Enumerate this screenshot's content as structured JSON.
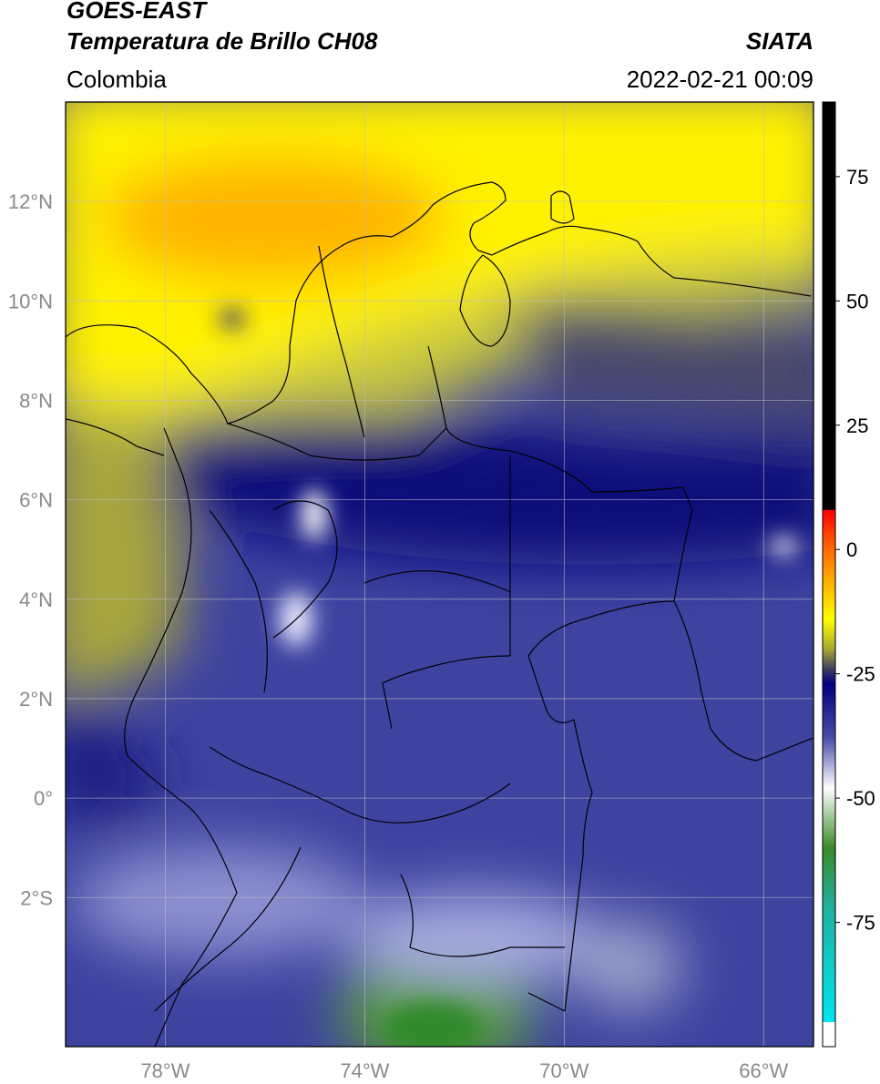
{
  "header": {
    "satellite": "GOES-EAST",
    "product": "Temperatura de Brillo CH08",
    "source": "SIATA",
    "region": "Colombia",
    "datetime": "2022-02-21 00:09"
  },
  "map": {
    "lon_range": [
      -80,
      -65
    ],
    "lat_range": [
      -5,
      14
    ],
    "lon_ticks": [
      {
        "value": -78,
        "label": "78°W"
      },
      {
        "value": -74,
        "label": "74°W"
      },
      {
        "value": -70,
        "label": "70°W"
      },
      {
        "value": -66,
        "label": "66°W"
      }
    ],
    "lat_ticks": [
      {
        "value": 12,
        "label": "12°N"
      },
      {
        "value": 10,
        "label": "10°N"
      },
      {
        "value": 8,
        "label": "8°N"
      },
      {
        "value": 6,
        "label": "6°N"
      },
      {
        "value": 4,
        "label": "4°N"
      },
      {
        "value": 2,
        "label": "2°N"
      },
      {
        "value": 0,
        "label": "0°"
      },
      {
        "value": -2,
        "label": "2°S"
      }
    ],
    "grid": true,
    "tick_label_color": "#8a8a8a"
  },
  "colorbar": {
    "range": [
      -100,
      90
    ],
    "tick_values": [
      75,
      50,
      25,
      0,
      -25,
      -50,
      -75
    ],
    "tick_labels": [
      "75",
      "50",
      "25",
      "0",
      "-25",
      "-50",
      "-75"
    ],
    "stops": [
      {
        "v": 90,
        "c": "#000000"
      },
      {
        "v": 8,
        "c": "#000000"
      },
      {
        "v": 7.9,
        "c": "#ff0000"
      },
      {
        "v": 0,
        "c": "#ff6a00"
      },
      {
        "v": -8,
        "c": "#ffc000"
      },
      {
        "v": -14,
        "c": "#ffff00"
      },
      {
        "v": -20,
        "c": "#a8a830"
      },
      {
        "v": -24,
        "c": "#404060"
      },
      {
        "v": -27,
        "c": "#000080"
      },
      {
        "v": -38,
        "c": "#4a4fa8"
      },
      {
        "v": -48,
        "c": "#ffffff"
      },
      {
        "v": -60,
        "c": "#3a8a2a"
      },
      {
        "v": -72,
        "c": "#20b0a0"
      },
      {
        "v": -95,
        "c": "#00e5ee"
      },
      {
        "v": -95.1,
        "c": "#ffffff"
      },
      {
        "v": -100,
        "c": "#ffffff"
      }
    ]
  }
}
